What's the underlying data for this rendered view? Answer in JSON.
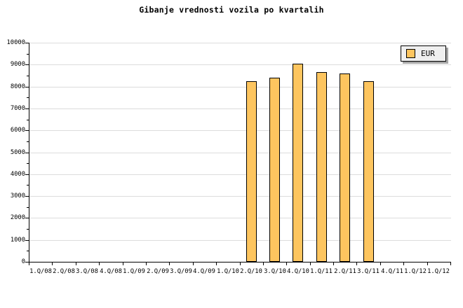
{
  "chart_data": {
    "type": "bar",
    "title": "Gibanje vrednosti vozila po kvartalih",
    "xlabel": "",
    "ylabel": "",
    "ylim": [
      0,
      10000
    ],
    "ytick_step": 1000,
    "ytick_minor_step": 500,
    "grid": "horizontal-major-only",
    "categories": [
      "1.Q/08",
      "2.Q/08",
      "3.Q/08",
      "4.Q/08",
      "1.Q/09",
      "2.Q/09",
      "3.Q/09",
      "4.Q/09",
      "1.Q/10",
      "2.Q/10",
      "3.Q/10",
      "4.Q/10",
      "1.Q/11",
      "2.Q/11",
      "3.Q/11",
      "4.Q/11",
      "1.Q/12",
      "1.Q/12"
    ],
    "series": [
      {
        "name": "EUR",
        "values": [
          null,
          null,
          null,
          null,
          null,
          null,
          null,
          null,
          null,
          8250,
          8400,
          9050,
          8650,
          8600,
          8250,
          null,
          null,
          null
        ]
      }
    ],
    "legend": {
      "position": "top-right",
      "entries": [
        "EUR"
      ]
    },
    "colors": {
      "background": "#ffffff",
      "bar_fill": "#fdc55f",
      "bar_border": "#000000",
      "gridline": "#dcdcdc",
      "axis": "#000000",
      "text": "#000000",
      "legend_bg": "#efefef",
      "legend_border": "#000000",
      "legend_shadow": "#a6a6a6"
    }
  }
}
